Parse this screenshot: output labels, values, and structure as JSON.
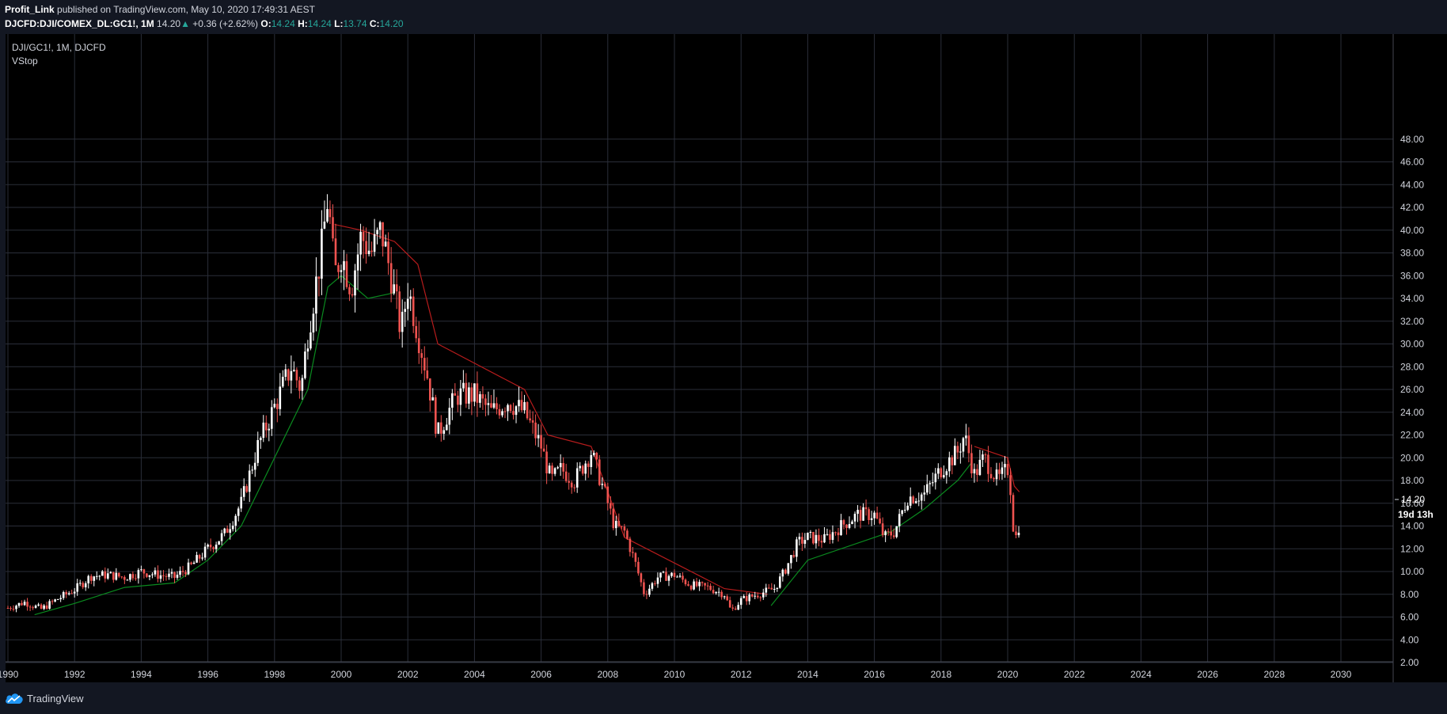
{
  "header": {
    "author": "Profit_Link",
    "published_text": "published on TradingView.com, May 10, 2020 17:49:31 AEST",
    "symbol_line": "DJCFD:DJI/COMEX_DL:GC1!, 1M",
    "last": "14.20",
    "change": "+0.36 (+2.62%)",
    "o_label": "O:",
    "o": "14.24",
    "h_label": "H:",
    "h": "14.24",
    "l_label": "L:",
    "l": "13.74",
    "c_label": "C:",
    "c": "14.20"
  },
  "legend": {
    "symbol": "DJI/GC1!, 1M, DJCFD",
    "indicator": "VStop"
  },
  "price_axis": {
    "current_price_label": "14.20",
    "countdown_label": "19d 13h"
  },
  "footer": {
    "brand": "TradingView"
  },
  "colors": {
    "background": "#131722",
    "plot_background": "#000000",
    "up_candle": "#ffffff",
    "down_candle": "#ef5350",
    "vstop_up": "#0a8a1f",
    "vstop_down": "#b71c1c",
    "accent_teal": "#26a69a",
    "grid": "#2a2e39"
  },
  "chart_data": {
    "type": "candlestick",
    "title": "DJI/GC1!, 1M, DJCFD",
    "indicator": "VStop",
    "ylim": [
      2,
      49
    ],
    "xlim": [
      1990,
      2032.7
    ],
    "x_ticks": [
      "1990",
      "1992",
      "1994",
      "1996",
      "1998",
      "2000",
      "2002",
      "2004",
      "2006",
      "2008",
      "2010",
      "2012",
      "2014",
      "2016",
      "2018",
      "2020",
      "2022",
      "2024",
      "2026",
      "2028",
      "2030"
    ],
    "y_ticks": [
      "2.00",
      "4.00",
      "6.00",
      "8.00",
      "10.00",
      "12.00",
      "14.00",
      "16.00",
      "18.00",
      "20.00",
      "22.00",
      "24.00",
      "26.00",
      "28.00",
      "30.00",
      "32.00",
      "34.00",
      "36.00",
      "38.00",
      "40.00",
      "42.00",
      "44.00",
      "46.00",
      "48.00"
    ],
    "price_keypoints": [
      [
        1990.0,
        6.8
      ],
      [
        1990.5,
        7.3
      ],
      [
        1991.0,
        6.7
      ],
      [
        1991.5,
        7.6
      ],
      [
        1992.0,
        8.4
      ],
      [
        1992.5,
        9.6
      ],
      [
        1993.0,
        9.7
      ],
      [
        1993.5,
        9.5
      ],
      [
        1994.0,
        10.0
      ],
      [
        1994.5,
        9.7
      ],
      [
        1995.0,
        9.5
      ],
      [
        1995.5,
        10.5
      ],
      [
        1996.0,
        12.0
      ],
      [
        1996.5,
        13.3
      ],
      [
        1997.0,
        16.0
      ],
      [
        1997.5,
        21.0
      ],
      [
        1998.0,
        24.5
      ],
      [
        1998.5,
        28.0
      ],
      [
        1998.8,
        26.0
      ],
      [
        1999.0,
        31.0
      ],
      [
        1999.4,
        38.0
      ],
      [
        1999.6,
        43.0
      ],
      [
        1999.8,
        36.0
      ],
      [
        2000.0,
        38.0
      ],
      [
        2000.3,
        35.0
      ],
      [
        2000.6,
        39.5
      ],
      [
        2000.9,
        38.0
      ],
      [
        2001.2,
        40.0
      ],
      [
        2001.5,
        36.0
      ],
      [
        2001.8,
        31.0
      ],
      [
        2002.0,
        35.0
      ],
      [
        2002.3,
        31.0
      ],
      [
        2002.6,
        27.0
      ],
      [
        2002.9,
        22.0
      ],
      [
        2003.2,
        24.0
      ],
      [
        2003.5,
        25.5
      ],
      [
        2004.0,
        25.5
      ],
      [
        2004.5,
        24.0
      ],
      [
        2005.0,
        25.0
      ],
      [
        2005.5,
        24.0
      ],
      [
        2006.0,
        21.0
      ],
      [
        2006.3,
        18.0
      ],
      [
        2006.6,
        19.0
      ],
      [
        2007.0,
        18.0
      ],
      [
        2007.5,
        20.5
      ],
      [
        2007.9,
        17.0
      ],
      [
        2008.2,
        14.0
      ],
      [
        2008.5,
        13.5
      ],
      [
        2008.8,
        11.0
      ],
      [
        2009.1,
        8.0
      ],
      [
        2009.5,
        9.5
      ],
      [
        2010.0,
        9.7
      ],
      [
        2010.5,
        8.8
      ],
      [
        2011.0,
        8.6
      ],
      [
        2011.5,
        8.0
      ],
      [
        2011.7,
        6.5
      ],
      [
        2012.0,
        7.5
      ],
      [
        2012.5,
        8.0
      ],
      [
        2013.0,
        8.5
      ],
      [
        2013.3,
        10.0
      ],
      [
        2013.7,
        12.5
      ],
      [
        2014.0,
        13.0
      ],
      [
        2014.5,
        12.8
      ],
      [
        2015.0,
        14.0
      ],
      [
        2015.5,
        15.0
      ],
      [
        2016.0,
        15.0
      ],
      [
        2016.3,
        13.0
      ],
      [
        2016.6,
        13.5
      ],
      [
        2017.0,
        16.5
      ],
      [
        2017.5,
        16.8
      ],
      [
        2018.0,
        19.0
      ],
      [
        2018.5,
        20.5
      ],
      [
        2018.7,
        22.0
      ],
      [
        2019.0,
        18.5
      ],
      [
        2019.3,
        20.0
      ],
      [
        2019.7,
        18.0
      ],
      [
        2020.0,
        19.0
      ],
      [
        2020.1,
        17.0
      ],
      [
        2020.2,
        12.5
      ],
      [
        2020.35,
        14.2
      ]
    ],
    "vstop_segments": [
      {
        "trend": "up",
        "points": [
          [
            1990.8,
            6.2
          ],
          [
            1992.0,
            7.2
          ],
          [
            1993.5,
            8.6
          ],
          [
            1995.0,
            9.0
          ],
          [
            1996.0,
            11.0
          ],
          [
            1997.0,
            14.0
          ],
          [
            1998.0,
            20.0
          ],
          [
            1999.0,
            26.0
          ],
          [
            1999.6,
            35.0
          ],
          [
            2000.0,
            36.0
          ],
          [
            2000.8,
            34.0
          ],
          [
            2001.6,
            34.5
          ]
        ]
      },
      {
        "trend": "down",
        "points": [
          [
            1999.8,
            40.5
          ],
          [
            2000.6,
            40.0
          ],
          [
            2001.6,
            39.0
          ],
          [
            2002.3,
            37.0
          ],
          [
            2002.9,
            30.0
          ],
          [
            2005.5,
            26.0
          ],
          [
            2006.2,
            22.0
          ],
          [
            2007.5,
            21.0
          ],
          [
            2008.5,
            13.0
          ],
          [
            2011.5,
            8.5
          ],
          [
            2012.8,
            8.0
          ]
        ]
      },
      {
        "trend": "up",
        "points": [
          [
            2012.9,
            7.0
          ],
          [
            2014.0,
            11.0
          ],
          [
            2016.0,
            13.0
          ],
          [
            2016.5,
            13.5
          ],
          [
            2017.5,
            15.5
          ],
          [
            2018.5,
            18.0
          ],
          [
            2018.9,
            19.5
          ]
        ]
      },
      {
        "trend": "down",
        "points": [
          [
            2019.0,
            21.0
          ],
          [
            2020.0,
            20.0
          ],
          [
            2020.2,
            17.5
          ],
          [
            2020.35,
            17.0
          ]
        ]
      }
    ]
  }
}
